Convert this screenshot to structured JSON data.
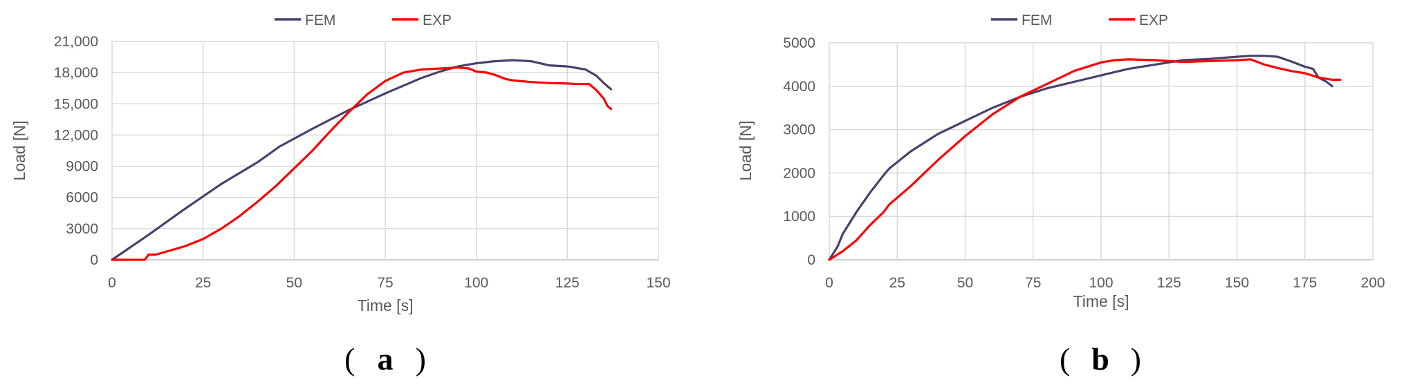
{
  "colors": {
    "FEM": "#4b3f6b",
    "EXP": "#ff0000",
    "grid": "#d9d9d9",
    "text": "#595959"
  },
  "chart_data": [
    {
      "type": "line",
      "panel_label": "a",
      "xlabel": "Time [s]",
      "ylabel": "Load [N]",
      "xlim": [
        0,
        150
      ],
      "ylim": [
        0,
        21000
      ],
      "xticks": [
        0,
        25,
        50,
        75,
        100,
        125,
        150
      ],
      "yticks": [
        0,
        3000,
        6000,
        9000,
        12000,
        15000,
        18000,
        21000
      ],
      "xtick_labels": [
        "0",
        "25",
        "50",
        "75",
        "100",
        "125",
        "150"
      ],
      "ytick_labels": [
        "0",
        "3000",
        "6000",
        "9000",
        "12,000",
        "15,000",
        "18,000",
        "21,000"
      ],
      "grid": true,
      "legend": "top-center",
      "series": [
        {
          "name": "FEM",
          "color": "#4b3f6b",
          "x": [
            0,
            5,
            10,
            20,
            30,
            40,
            46,
            55,
            65,
            75,
            85,
            90,
            95,
            100,
            105,
            110,
            115,
            120,
            125,
            130,
            133,
            135,
            137
          ],
          "y": [
            0,
            1200,
            2400,
            4900,
            7300,
            9400,
            10900,
            12600,
            14400,
            16000,
            17500,
            18100,
            18600,
            18900,
            19100,
            19200,
            19100,
            18700,
            18600,
            18300,
            17700,
            17000,
            16400
          ]
        },
        {
          "name": "EXP",
          "color": "#ff0000",
          "x": [
            0,
            5,
            9,
            10,
            12,
            15,
            20,
            25,
            30,
            35,
            40,
            45,
            50,
            55,
            60,
            65,
            70,
            75,
            80,
            85,
            90,
            95,
            98,
            100,
            103,
            105,
            108,
            110,
            115,
            120,
            125,
            128,
            131,
            133,
            135,
            136,
            137
          ],
          "y": [
            0,
            0,
            0,
            500,
            500,
            800,
            1300,
            2000,
            3000,
            4200,
            5600,
            7100,
            8800,
            10500,
            12400,
            14200,
            15900,
            17200,
            18000,
            18300,
            18400,
            18500,
            18400,
            18100,
            18000,
            17800,
            17400,
            17250,
            17100,
            17000,
            16950,
            16900,
            16900,
            16300,
            15500,
            14800,
            14500
          ]
        }
      ]
    },
    {
      "type": "line",
      "panel_label": "b",
      "xlabel": "Time [s]",
      "ylabel": "Load [N]",
      "xlim": [
        0,
        200
      ],
      "ylim": [
        0,
        5000
      ],
      "xticks": [
        0,
        25,
        50,
        75,
        100,
        125,
        150,
        175,
        200
      ],
      "yticks": [
        0,
        1000,
        2000,
        3000,
        4000,
        5000
      ],
      "xtick_labels": [
        "0",
        "25",
        "50",
        "75",
        "100",
        "125",
        "150",
        "175",
        "200"
      ],
      "ytick_labels": [
        "0",
        "1000",
        "2000",
        "3000",
        "4000",
        "5000"
      ],
      "grid": true,
      "legend": "top-center",
      "series": [
        {
          "name": "FEM",
          "color": "#4b3f6b",
          "x": [
            0,
            3,
            5,
            10,
            15,
            20,
            22,
            30,
            40,
            50,
            60,
            70,
            80,
            90,
            100,
            110,
            120,
            130,
            140,
            150,
            155,
            160,
            165,
            170,
            175,
            178,
            180,
            183,
            185
          ],
          "y": [
            0,
            300,
            600,
            1100,
            1550,
            1950,
            2100,
            2500,
            2900,
            3200,
            3500,
            3750,
            3950,
            4100,
            4250,
            4400,
            4500,
            4600,
            4630,
            4680,
            4700,
            4700,
            4680,
            4570,
            4450,
            4400,
            4200,
            4100,
            4000
          ]
        },
        {
          "name": "EXP",
          "color": "#ff0000",
          "x": [
            0,
            5,
            10,
            15,
            20,
            22,
            30,
            40,
            50,
            60,
            70,
            80,
            90,
            100,
            105,
            110,
            120,
            130,
            140,
            150,
            155,
            160,
            165,
            170,
            175,
            180,
            185,
            188
          ],
          "y": [
            0,
            200,
            450,
            800,
            1100,
            1270,
            1700,
            2300,
            2850,
            3350,
            3750,
            4050,
            4350,
            4550,
            4600,
            4620,
            4600,
            4560,
            4580,
            4600,
            4620,
            4500,
            4420,
            4350,
            4300,
            4200,
            4150,
            4150
          ]
        }
      ]
    }
  ]
}
